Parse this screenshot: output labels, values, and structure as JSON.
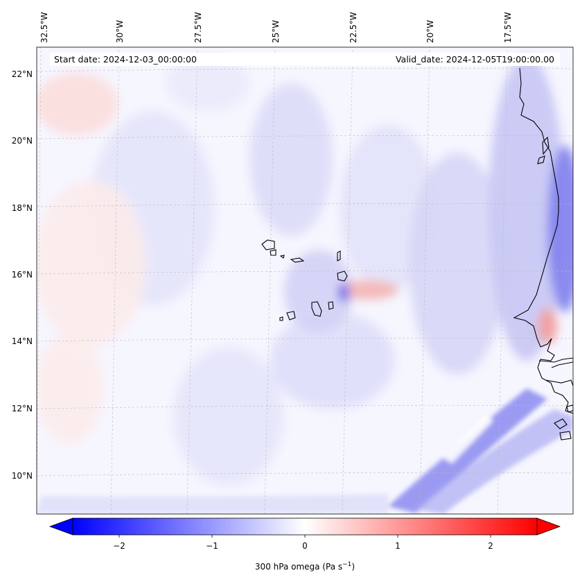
{
  "map": {
    "projection": "PlateCarree",
    "lon_range": [
      -33.0,
      -15.0
    ],
    "lat_range": [
      8.9,
      22.8
    ],
    "start_date_label": "Start date: 2024-12-03_00:00:00",
    "valid_date_label": "Valid_date: 2024-12-05T19:00:00.00",
    "gridlines": true,
    "coastlines": true,
    "lon_ticks": [
      {
        "value": -32.5,
        "label": "32.5°W"
      },
      {
        "value": -30.0,
        "label": "30°W"
      },
      {
        "value": -27.5,
        "label": "27.5°W"
      },
      {
        "value": -25.0,
        "label": "25°W"
      },
      {
        "value": -22.5,
        "label": "22.5°W"
      },
      {
        "value": -20.0,
        "label": "20°W"
      },
      {
        "value": -17.5,
        "label": "17.5°W"
      }
    ],
    "lat_ticks": [
      {
        "value": 22,
        "label": "22°N"
      },
      {
        "value": 20,
        "label": "20°N"
      },
      {
        "value": 18,
        "label": "18°N"
      },
      {
        "value": 16,
        "label": "16°N"
      },
      {
        "value": 14,
        "label": "14°N"
      },
      {
        "value": 12,
        "label": "12°N"
      },
      {
        "value": 10,
        "label": "10°N"
      }
    ],
    "islands": [
      "Santo Antão",
      "São Vicente",
      "Santa Luzia",
      "São Nicolau",
      "Sal",
      "Boa Vista",
      "Maio",
      "Santiago",
      "Fogo",
      "Brava"
    ]
  },
  "colorbar": {
    "label": "300 hPa omega (Pa s",
    "label_sup": "−1",
    "label_end": ")",
    "range": [
      -2.6,
      2.6
    ],
    "ticks": [
      {
        "value": -2,
        "label": "−2"
      },
      {
        "value": -1,
        "label": "−1"
      },
      {
        "value": 0,
        "label": "0"
      },
      {
        "value": 1,
        "label": "1"
      },
      {
        "value": 2,
        "label": "2"
      }
    ],
    "colormap": "bwr",
    "color_negative": "#0000ff",
    "color_zero": "#ffffff",
    "color_positive": "#ff0000",
    "extend": "both"
  }
}
